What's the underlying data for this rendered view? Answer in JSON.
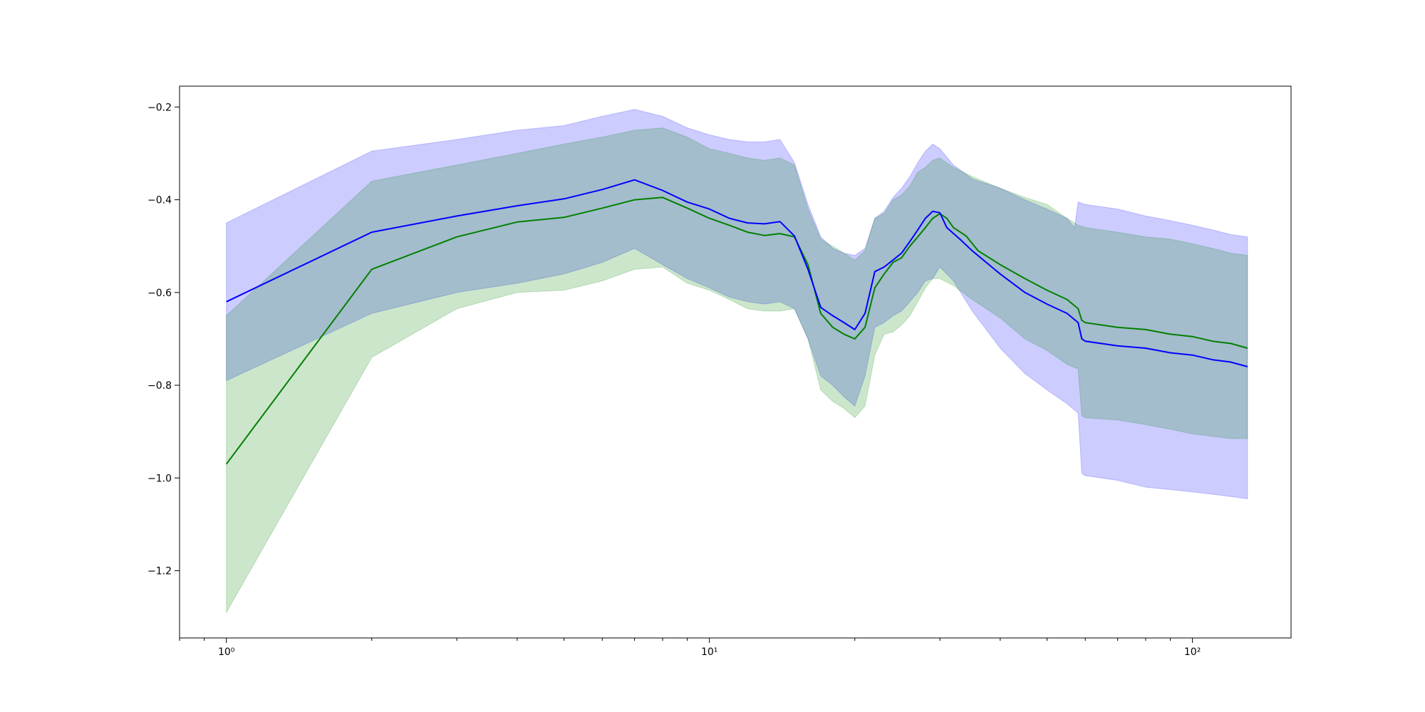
{
  "chart_data": {
    "type": "line",
    "title": "",
    "xlabel": "",
    "ylabel": "",
    "xscale": "log",
    "xlim": [
      0.8,
      160
    ],
    "ylim": [
      -1.345,
      -0.155
    ],
    "grid": false,
    "legend": "none",
    "x_ticks": [
      {
        "value": 1,
        "label": "10⁰"
      },
      {
        "value": 10,
        "label": "10¹"
      },
      {
        "value": 100,
        "label": "10²"
      }
    ],
    "y_ticks": [
      {
        "value": -0.2,
        "label": "−0.2"
      },
      {
        "value": -0.4,
        "label": "−0.4"
      },
      {
        "value": -0.6,
        "label": "−0.6"
      },
      {
        "value": -0.8,
        "label": "−0.8"
      },
      {
        "value": -1.0,
        "label": "−1.0"
      },
      {
        "value": -1.2,
        "label": "−1.2"
      }
    ],
    "bands": [
      {
        "color": "#0000ff",
        "opacity": 0.2,
        "upper": [
          [
            1,
            -0.45
          ],
          [
            2,
            -0.295
          ],
          [
            3,
            -0.27
          ],
          [
            4,
            -0.25
          ],
          [
            5,
            -0.24
          ],
          [
            6,
            -0.22
          ],
          [
            7,
            -0.205
          ],
          [
            8,
            -0.22
          ],
          [
            9,
            -0.245
          ],
          [
            10,
            -0.26
          ],
          [
            11,
            -0.27
          ],
          [
            12,
            -0.275
          ],
          [
            13,
            -0.275
          ],
          [
            14,
            -0.27
          ],
          [
            15,
            -0.32
          ],
          [
            16,
            -0.41
          ],
          [
            17,
            -0.48
          ],
          [
            18,
            -0.505
          ],
          [
            19,
            -0.515
          ],
          [
            20,
            -0.52
          ],
          [
            21,
            -0.505
          ],
          [
            22,
            -0.44
          ],
          [
            23,
            -0.425
          ],
          [
            24,
            -0.395
          ],
          [
            25,
            -0.375
          ],
          [
            26,
            -0.35
          ],
          [
            27,
            -0.32
          ],
          [
            28,
            -0.295
          ],
          [
            29,
            -0.28
          ],
          [
            30,
            -0.29
          ],
          [
            32,
            -0.325
          ],
          [
            35,
            -0.355
          ],
          [
            40,
            -0.375
          ],
          [
            45,
            -0.4
          ],
          [
            50,
            -0.42
          ],
          [
            55,
            -0.44
          ],
          [
            57,
            -0.46
          ],
          [
            58,
            -0.405
          ],
          [
            60,
            -0.41
          ],
          [
            70,
            -0.42
          ],
          [
            80,
            -0.435
          ],
          [
            90,
            -0.445
          ],
          [
            100,
            -0.455
          ],
          [
            110,
            -0.465
          ],
          [
            120,
            -0.475
          ],
          [
            130,
            -0.48
          ]
        ],
        "lower": [
          [
            1,
            -0.79
          ],
          [
            2,
            -0.645
          ],
          [
            3,
            -0.6
          ],
          [
            4,
            -0.58
          ],
          [
            5,
            -0.56
          ],
          [
            6,
            -0.535
          ],
          [
            7,
            -0.505
          ],
          [
            8,
            -0.54
          ],
          [
            9,
            -0.57
          ],
          [
            10,
            -0.59
          ],
          [
            11,
            -0.61
          ],
          [
            12,
            -0.62
          ],
          [
            13,
            -0.625
          ],
          [
            14,
            -0.62
          ],
          [
            15,
            -0.635
          ],
          [
            16,
            -0.7
          ],
          [
            17,
            -0.78
          ],
          [
            18,
            -0.8
          ],
          [
            19,
            -0.825
          ],
          [
            20,
            -0.845
          ],
          [
            21,
            -0.78
          ],
          [
            22,
            -0.675
          ],
          [
            23,
            -0.665
          ],
          [
            24,
            -0.65
          ],
          [
            25,
            -0.64
          ],
          [
            26,
            -0.62
          ],
          [
            27,
            -0.6
          ],
          [
            28,
            -0.575
          ],
          [
            29,
            -0.57
          ],
          [
            30,
            -0.545
          ],
          [
            32,
            -0.575
          ],
          [
            35,
            -0.64
          ],
          [
            40,
            -0.72
          ],
          [
            45,
            -0.775
          ],
          [
            50,
            -0.81
          ],
          [
            55,
            -0.84
          ],
          [
            58,
            -0.86
          ],
          [
            59,
            -0.99
          ],
          [
            60,
            -0.995
          ],
          [
            70,
            -1.005
          ],
          [
            80,
            -1.02
          ],
          [
            90,
            -1.025
          ],
          [
            100,
            -1.03
          ],
          [
            110,
            -1.035
          ],
          [
            120,
            -1.04
          ],
          [
            130,
            -1.045
          ]
        ]
      },
      {
        "color": "#008000",
        "opacity": 0.2,
        "upper": [
          [
            1,
            -0.65
          ],
          [
            2,
            -0.36
          ],
          [
            3,
            -0.325
          ],
          [
            4,
            -0.3
          ],
          [
            5,
            -0.28
          ],
          [
            6,
            -0.265
          ],
          [
            7,
            -0.25
          ],
          [
            8,
            -0.245
          ],
          [
            9,
            -0.265
          ],
          [
            10,
            -0.29
          ],
          [
            11,
            -0.3
          ],
          [
            12,
            -0.31
          ],
          [
            13,
            -0.315
          ],
          [
            14,
            -0.31
          ],
          [
            15,
            -0.325
          ],
          [
            16,
            -0.42
          ],
          [
            17,
            -0.485
          ],
          [
            18,
            -0.5
          ],
          [
            19,
            -0.515
          ],
          [
            20,
            -0.53
          ],
          [
            21,
            -0.51
          ],
          [
            22,
            -0.44
          ],
          [
            23,
            -0.43
          ],
          [
            24,
            -0.4
          ],
          [
            25,
            -0.39
          ],
          [
            26,
            -0.37
          ],
          [
            27,
            -0.34
          ],
          [
            28,
            -0.33
          ],
          [
            29,
            -0.315
          ],
          [
            30,
            -0.31
          ],
          [
            32,
            -0.33
          ],
          [
            35,
            -0.35
          ],
          [
            40,
            -0.375
          ],
          [
            45,
            -0.395
          ],
          [
            50,
            -0.41
          ],
          [
            55,
            -0.44
          ],
          [
            58,
            -0.455
          ],
          [
            60,
            -0.46
          ],
          [
            70,
            -0.47
          ],
          [
            80,
            -0.48
          ],
          [
            90,
            -0.485
          ],
          [
            100,
            -0.495
          ],
          [
            110,
            -0.505
          ],
          [
            120,
            -0.515
          ],
          [
            130,
            -0.52
          ]
        ],
        "lower": [
          [
            1,
            -1.29
          ],
          [
            2,
            -0.74
          ],
          [
            3,
            -0.635
          ],
          [
            4,
            -0.6
          ],
          [
            5,
            -0.595
          ],
          [
            6,
            -0.575
          ],
          [
            7,
            -0.55
          ],
          [
            8,
            -0.545
          ],
          [
            9,
            -0.58
          ],
          [
            10,
            -0.595
          ],
          [
            11,
            -0.615
          ],
          [
            12,
            -0.635
          ],
          [
            13,
            -0.64
          ],
          [
            14,
            -0.64
          ],
          [
            15,
            -0.635
          ],
          [
            16,
            -0.7
          ],
          [
            17,
            -0.81
          ],
          [
            18,
            -0.835
          ],
          [
            19,
            -0.85
          ],
          [
            20,
            -0.87
          ],
          [
            21,
            -0.845
          ],
          [
            22,
            -0.735
          ],
          [
            23,
            -0.69
          ],
          [
            24,
            -0.685
          ],
          [
            25,
            -0.67
          ],
          [
            26,
            -0.65
          ],
          [
            27,
            -0.62
          ],
          [
            28,
            -0.59
          ],
          [
            29,
            -0.57
          ],
          [
            30,
            -0.57
          ],
          [
            32,
            -0.585
          ],
          [
            35,
            -0.615
          ],
          [
            40,
            -0.655
          ],
          [
            45,
            -0.7
          ],
          [
            50,
            -0.725
          ],
          [
            55,
            -0.755
          ],
          [
            58,
            -0.765
          ],
          [
            59,
            -0.865
          ],
          [
            60,
            -0.87
          ],
          [
            70,
            -0.875
          ],
          [
            80,
            -0.885
          ],
          [
            90,
            -0.895
          ],
          [
            100,
            -0.905
          ],
          [
            110,
            -0.91
          ],
          [
            120,
            -0.915
          ],
          [
            130,
            -0.915
          ]
        ]
      }
    ],
    "series": [
      {
        "color": "#008000",
        "points": [
          [
            1,
            -0.97
          ],
          [
            2,
            -0.55
          ],
          [
            3,
            -0.48
          ],
          [
            4,
            -0.448
          ],
          [
            5,
            -0.438
          ],
          [
            6,
            -0.418
          ],
          [
            7,
            -0.4
          ],
          [
            8,
            -0.395
          ],
          [
            9,
            -0.418
          ],
          [
            10,
            -0.44
          ],
          [
            11,
            -0.455
          ],
          [
            12,
            -0.47
          ],
          [
            13,
            -0.477
          ],
          [
            14,
            -0.473
          ],
          [
            15,
            -0.48
          ],
          [
            16,
            -0.54
          ],
          [
            17,
            -0.645
          ],
          [
            18,
            -0.675
          ],
          [
            19,
            -0.69
          ],
          [
            20,
            -0.7
          ],
          [
            21,
            -0.675
          ],
          [
            22,
            -0.59
          ],
          [
            23,
            -0.56
          ],
          [
            24,
            -0.535
          ],
          [
            25,
            -0.525
          ],
          [
            26,
            -0.5
          ],
          [
            27,
            -0.48
          ],
          [
            28,
            -0.46
          ],
          [
            29,
            -0.44
          ],
          [
            30,
            -0.43
          ],
          [
            31,
            -0.44
          ],
          [
            32,
            -0.46
          ],
          [
            34,
            -0.478
          ],
          [
            36,
            -0.51
          ],
          [
            40,
            -0.54
          ],
          [
            45,
            -0.57
          ],
          [
            50,
            -0.595
          ],
          [
            55,
            -0.615
          ],
          [
            58,
            -0.635
          ],
          [
            59,
            -0.66
          ],
          [
            60,
            -0.665
          ],
          [
            70,
            -0.675
          ],
          [
            80,
            -0.68
          ],
          [
            90,
            -0.69
          ],
          [
            100,
            -0.695
          ],
          [
            110,
            -0.705
          ],
          [
            120,
            -0.71
          ],
          [
            130,
            -0.72
          ]
        ]
      },
      {
        "color": "#0000ff",
        "points": [
          [
            1,
            -0.62
          ],
          [
            2,
            -0.47
          ],
          [
            3,
            -0.435
          ],
          [
            4,
            -0.413
          ],
          [
            5,
            -0.398
          ],
          [
            6,
            -0.378
          ],
          [
            7,
            -0.357
          ],
          [
            8,
            -0.38
          ],
          [
            9,
            -0.405
          ],
          [
            10,
            -0.42
          ],
          [
            11,
            -0.44
          ],
          [
            12,
            -0.45
          ],
          [
            13,
            -0.452
          ],
          [
            14,
            -0.447
          ],
          [
            15,
            -0.478
          ],
          [
            16,
            -0.55
          ],
          [
            17,
            -0.632
          ],
          [
            18,
            -0.65
          ],
          [
            19,
            -0.665
          ],
          [
            20,
            -0.68
          ],
          [
            21,
            -0.645
          ],
          [
            22,
            -0.555
          ],
          [
            23,
            -0.545
          ],
          [
            24,
            -0.53
          ],
          [
            25,
            -0.515
          ],
          [
            26,
            -0.49
          ],
          [
            27,
            -0.465
          ],
          [
            28,
            -0.44
          ],
          [
            29,
            -0.425
          ],
          [
            30,
            -0.428
          ],
          [
            31,
            -0.46
          ],
          [
            33,
            -0.485
          ],
          [
            35,
            -0.51
          ],
          [
            40,
            -0.56
          ],
          [
            45,
            -0.6
          ],
          [
            50,
            -0.625
          ],
          [
            55,
            -0.645
          ],
          [
            58,
            -0.665
          ],
          [
            59,
            -0.7
          ],
          [
            60,
            -0.705
          ],
          [
            70,
            -0.715
          ],
          [
            80,
            -0.72
          ],
          [
            90,
            -0.73
          ],
          [
            100,
            -0.735
          ],
          [
            110,
            -0.745
          ],
          [
            120,
            -0.75
          ],
          [
            130,
            -0.76
          ]
        ]
      }
    ]
  }
}
